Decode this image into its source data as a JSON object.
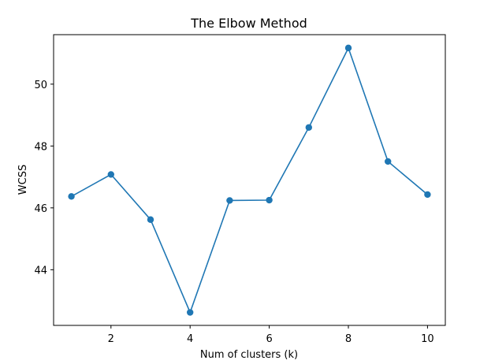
{
  "chart_data": {
    "type": "line",
    "title": "The Elbow Method",
    "xlabel": "Num of clusters (k)",
    "ylabel": "WCSS",
    "x": [
      1,
      2,
      3,
      4,
      5,
      6,
      7,
      8,
      9,
      10
    ],
    "series": [
      {
        "values": [
          46.37,
          47.08,
          45.62,
          42.62,
          46.24,
          46.25,
          48.6,
          51.17,
          47.5,
          46.43
        ],
        "color": "#1f77b4",
        "marker": "circle"
      }
    ],
    "xlim": [
      0.55,
      10.45
    ],
    "ylim": [
      42.2,
      51.6
    ],
    "xticks": [
      2,
      4,
      6,
      8,
      10
    ],
    "yticks": [
      44,
      46,
      48,
      50
    ],
    "grid": false
  }
}
